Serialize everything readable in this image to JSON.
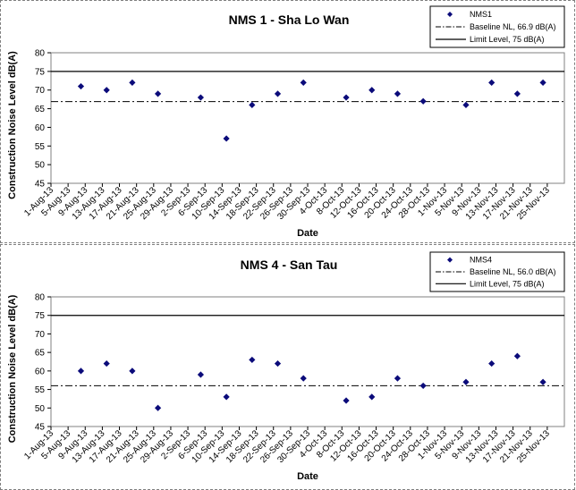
{
  "chart_data": [
    {
      "type": "scatter",
      "title": "NMS 1 - Sha Lo Wan",
      "xlabel": "Date",
      "ylabel": "Construction Noise Level  dB(A)",
      "ylim": [
        45,
        80
      ],
      "yticks": [
        45,
        50,
        55,
        60,
        65,
        70,
        75,
        80
      ],
      "categories": [
        "1-Aug-13",
        "5-Aug-13",
        "9-Aug-13",
        "13-Aug-13",
        "17-Aug-13",
        "21-Aug-13",
        "25-Aug-13",
        "29-Aug-13",
        "2-Sep-13",
        "6-Sep-13",
        "10-Sep-13",
        "14-Sep-13",
        "18-Sep-13",
        "22-Sep-13",
        "26-Sep-13",
        "30-Sep-13",
        "4-Oct-13",
        "8-Oct-13",
        "12-Oct-13",
        "16-Oct-13",
        "20-Oct-13",
        "24-Oct-13",
        "28-Oct-13",
        "1-Nov-13",
        "5-Nov-13",
        "9-Nov-13",
        "13-Nov-13",
        "17-Nov-13",
        "21-Nov-13",
        "25-Nov-13"
      ],
      "series": [
        {
          "name": "NMS1",
          "points": [
            {
              "x": "8-Aug-13",
              "y": 71
            },
            {
              "x": "14-Aug-13",
              "y": 70
            },
            {
              "x": "20-Aug-13",
              "y": 72
            },
            {
              "x": "26-Aug-13",
              "y": 69
            },
            {
              "x": "5-Sep-13",
              "y": 68
            },
            {
              "x": "11-Sep-13",
              "y": 57
            },
            {
              "x": "17-Sep-13",
              "y": 66
            },
            {
              "x": "23-Sep-13",
              "y": 69
            },
            {
              "x": "29-Sep-13",
              "y": 72
            },
            {
              "x": "9-Oct-13",
              "y": 68
            },
            {
              "x": "15-Oct-13",
              "y": 70
            },
            {
              "x": "21-Oct-13",
              "y": 69
            },
            {
              "x": "27-Oct-13",
              "y": 67
            },
            {
              "x": "6-Nov-13",
              "y": 66
            },
            {
              "x": "12-Nov-13",
              "y": 72
            },
            {
              "x": "18-Nov-13",
              "y": 69
            },
            {
              "x": "24-Nov-13",
              "y": 72
            }
          ]
        },
        {
          "name": "Baseline NL, 66.9 dB(A)",
          "value": 66.9
        },
        {
          "name": "Limit Level, 75 dB(A)",
          "value": 75
        }
      ]
    },
    {
      "type": "scatter",
      "title": "NMS 4 - San Tau",
      "xlabel": "Date",
      "ylabel": "Construction Noise Level  dB(A)",
      "ylim": [
        45,
        80
      ],
      "yticks": [
        45,
        50,
        55,
        60,
        65,
        70,
        75,
        80
      ],
      "categories": [
        "1-Aug-13",
        "5-Aug-13",
        "9-Aug-13",
        "13-Aug-13",
        "17-Aug-13",
        "21-Aug-13",
        "25-Aug-13",
        "29-Aug-13",
        "2-Sep-13",
        "6-Sep-13",
        "10-Sep-13",
        "14-Sep-13",
        "18-Sep-13",
        "22-Sep-13",
        "26-Sep-13",
        "30-Sep-13",
        "4-Oct-13",
        "8-Oct-13",
        "12-Oct-13",
        "16-Oct-13",
        "20-Oct-13",
        "24-Oct-13",
        "28-Oct-13",
        "1-Nov-13",
        "5-Nov-13",
        "9-Nov-13",
        "13-Nov-13",
        "17-Nov-13",
        "21-Nov-13",
        "25-Nov-13"
      ],
      "series": [
        {
          "name": "NMS4",
          "points": [
            {
              "x": "8-Aug-13",
              "y": 60
            },
            {
              "x": "14-Aug-13",
              "y": 62
            },
            {
              "x": "20-Aug-13",
              "y": 60
            },
            {
              "x": "26-Aug-13",
              "y": 50
            },
            {
              "x": "5-Sep-13",
              "y": 59
            },
            {
              "x": "11-Sep-13",
              "y": 53
            },
            {
              "x": "17-Sep-13",
              "y": 63
            },
            {
              "x": "23-Sep-13",
              "y": 62
            },
            {
              "x": "29-Sep-13",
              "y": 58
            },
            {
              "x": "9-Oct-13",
              "y": 52
            },
            {
              "x": "15-Oct-13",
              "y": 53
            },
            {
              "x": "21-Oct-13",
              "y": 58
            },
            {
              "x": "27-Oct-13",
              "y": 56
            },
            {
              "x": "6-Nov-13",
              "y": 57
            },
            {
              "x": "12-Nov-13",
              "y": 62
            },
            {
              "x": "18-Nov-13",
              "y": 64
            },
            {
              "x": "24-Nov-13",
              "y": 57
            }
          ]
        },
        {
          "name": "Baseline NL, 56.0 dB(A)",
          "value": 56.0
        },
        {
          "name": "Limit Level, 75 dB(A)",
          "value": 75
        }
      ]
    }
  ],
  "colors": {
    "marker": "#0b0b7a",
    "line": "#000000",
    "plot_border": "#808080"
  }
}
